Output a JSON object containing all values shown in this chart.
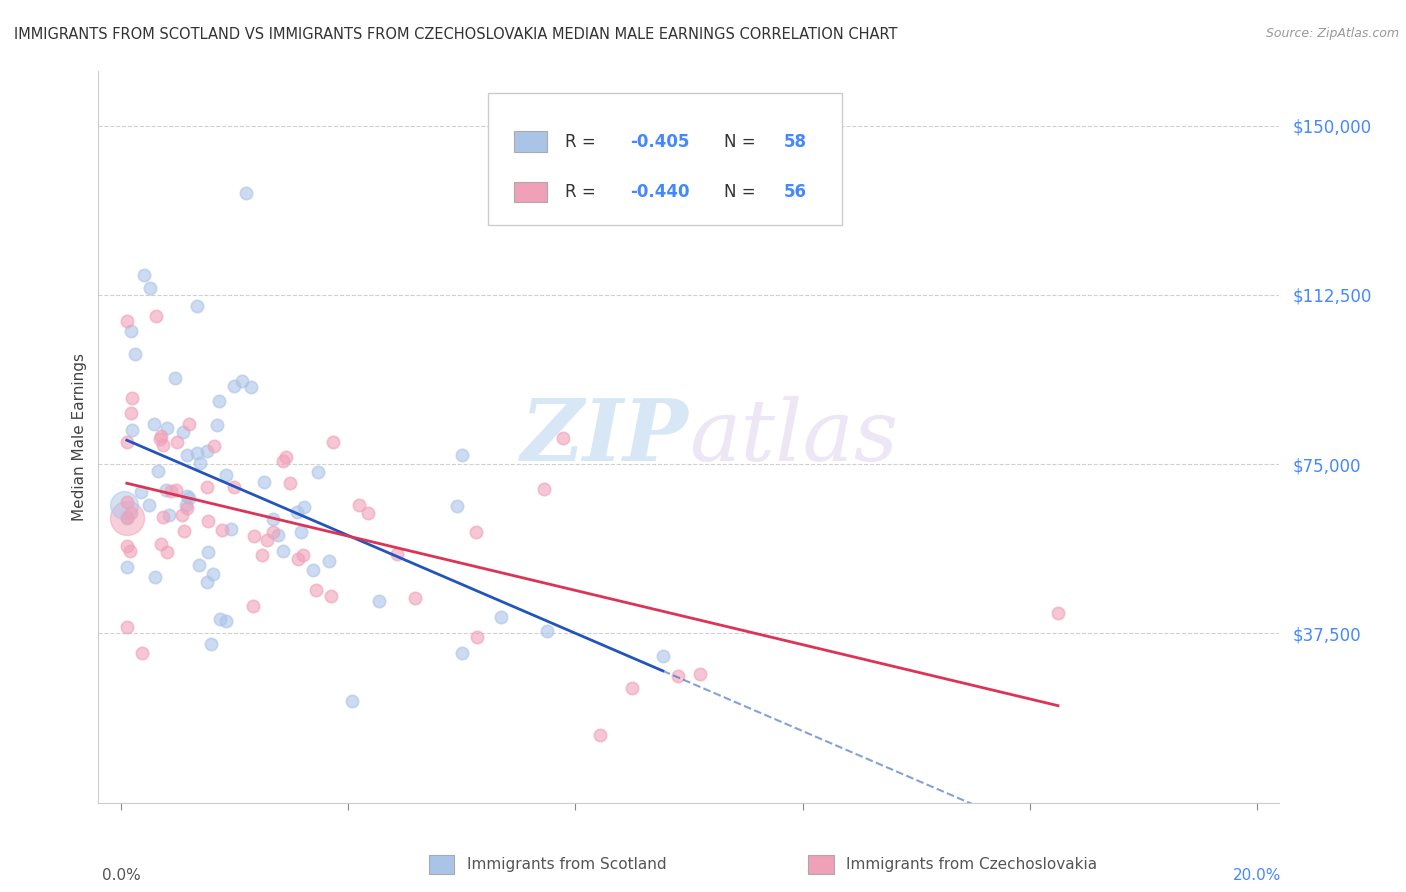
{
  "title": "IMMIGRANTS FROM SCOTLAND VS IMMIGRANTS FROM CZECHOSLOVAKIA MEDIAN MALE EARNINGS CORRELATION CHART",
  "source": "Source: ZipAtlas.com",
  "ylabel": "Median Male Earnings",
  "scotland_color": "#aac4e8",
  "czechoslovakia_color": "#f0a0b8",
  "scotland_line_color": "#2255bb",
  "czechoslovakia_line_color": "#dd3355",
  "scotland_R": -0.405,
  "scotland_N": 58,
  "czechoslovakia_R": -0.44,
  "czechoslovakia_N": 56,
  "ytick_color": "#4488ff",
  "ytick_vals": [
    0,
    37500,
    75000,
    112500,
    150000
  ],
  "ytick_labels": [
    "",
    "$37,500",
    "$75,000",
    "$112,500",
    "$150,000"
  ],
  "watermark_zip": "ZIP",
  "watermark_atlas": "atlas",
  "background_color": "#ffffff",
  "grid_color": "#d0d0d0",
  "title_color": "#333333",
  "label_color": "#555555",
  "source_color": "#999999"
}
